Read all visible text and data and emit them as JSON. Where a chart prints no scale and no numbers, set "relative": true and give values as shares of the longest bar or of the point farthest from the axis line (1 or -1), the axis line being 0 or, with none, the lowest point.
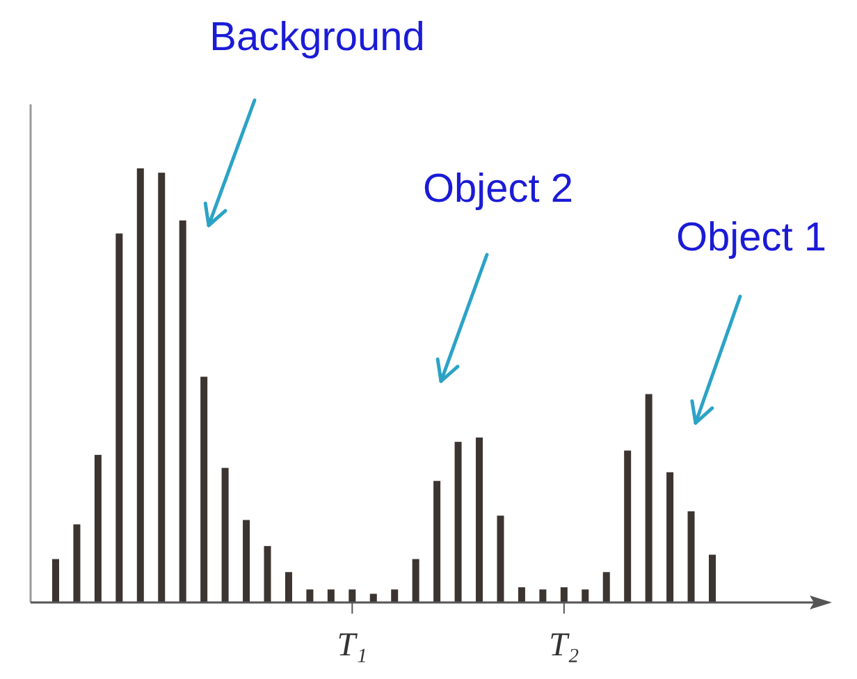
{
  "chart_data": {
    "type": "bar",
    "relative": true,
    "color": "#3b3430",
    "categories": [
      null,
      null,
      null,
      null,
      null,
      null,
      null,
      null,
      null,
      null,
      null,
      null,
      null,
      null,
      "T₁",
      null,
      null,
      null,
      null,
      null,
      null,
      null,
      null,
      null,
      "T₂",
      null,
      null,
      null,
      null,
      null,
      null,
      null
    ],
    "values": [
      0.1,
      0.18,
      0.34,
      0.85,
      1,
      0.99,
      0.88,
      0.52,
      0.31,
      0.19,
      0.13,
      0.07,
      0.03,
      0.03,
      0.03,
      0.02,
      0.03,
      0.1,
      0.28,
      0.37,
      0.38,
      0.2,
      0.035,
      0.03,
      0.035,
      0.03,
      0.07,
      0.35,
      0.48,
      0.3,
      0.21,
      0.11
    ],
    "annotations": [
      "Background",
      "Object 2",
      "Object 1"
    ]
  }
}
